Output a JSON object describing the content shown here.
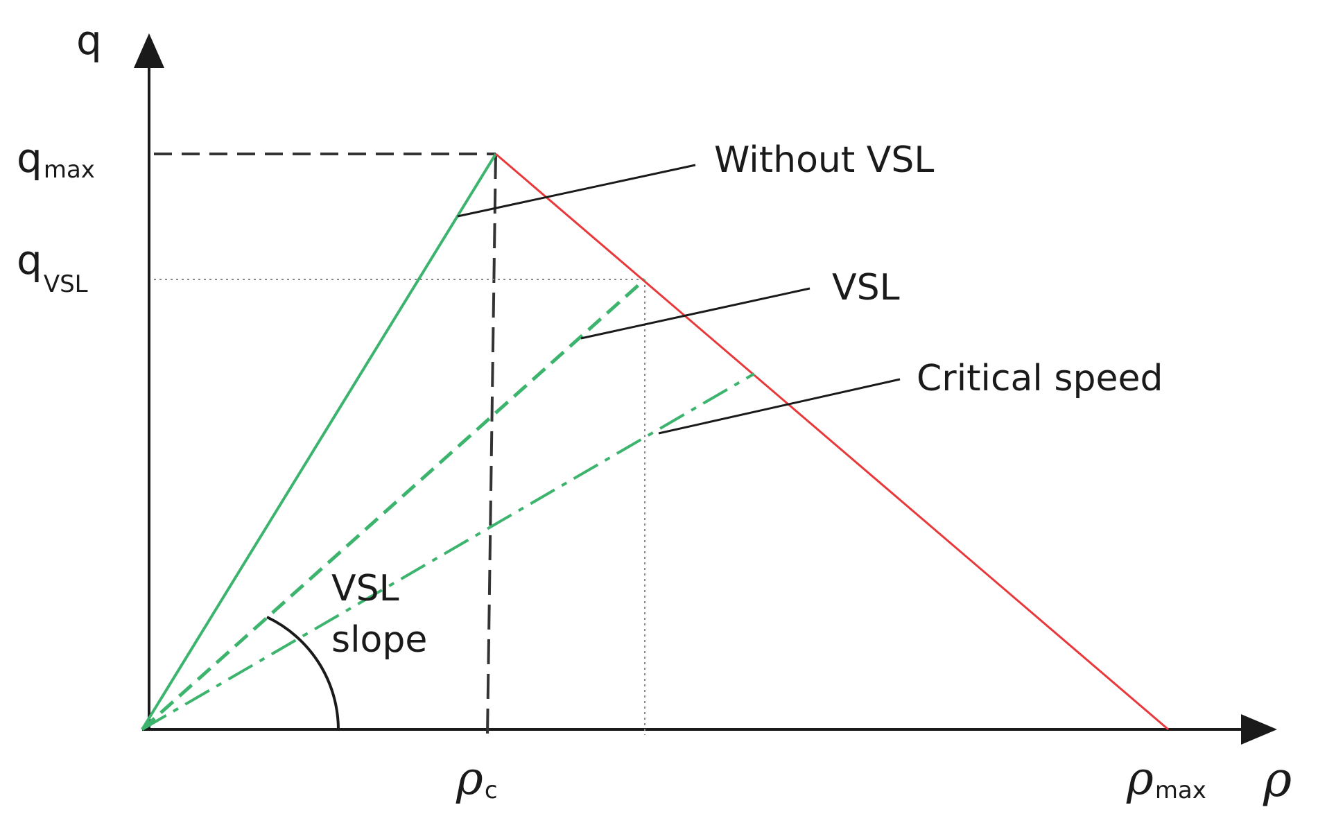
{
  "axes": {
    "y_label": "q",
    "x_label": "ρ",
    "y_ticks": [
      {
        "main": "q",
        "sub": "max"
      },
      {
        "main": "q",
        "sub": "VSL"
      }
    ],
    "x_ticks": [
      {
        "main": "ρ",
        "sub": "c"
      },
      {
        "main": "ρ",
        "sub": "max"
      }
    ]
  },
  "annotations": {
    "without_vsl": "Without VSL",
    "vsl": "VSL",
    "critical_speed": "Critical speed",
    "vsl_slope_line1": "VSL",
    "vsl_slope_line2": "slope"
  },
  "colors": {
    "free_flow": "#3cb46e",
    "congested": "#e8383a",
    "axis": "#1a1a1a",
    "guide": "#444444"
  }
}
